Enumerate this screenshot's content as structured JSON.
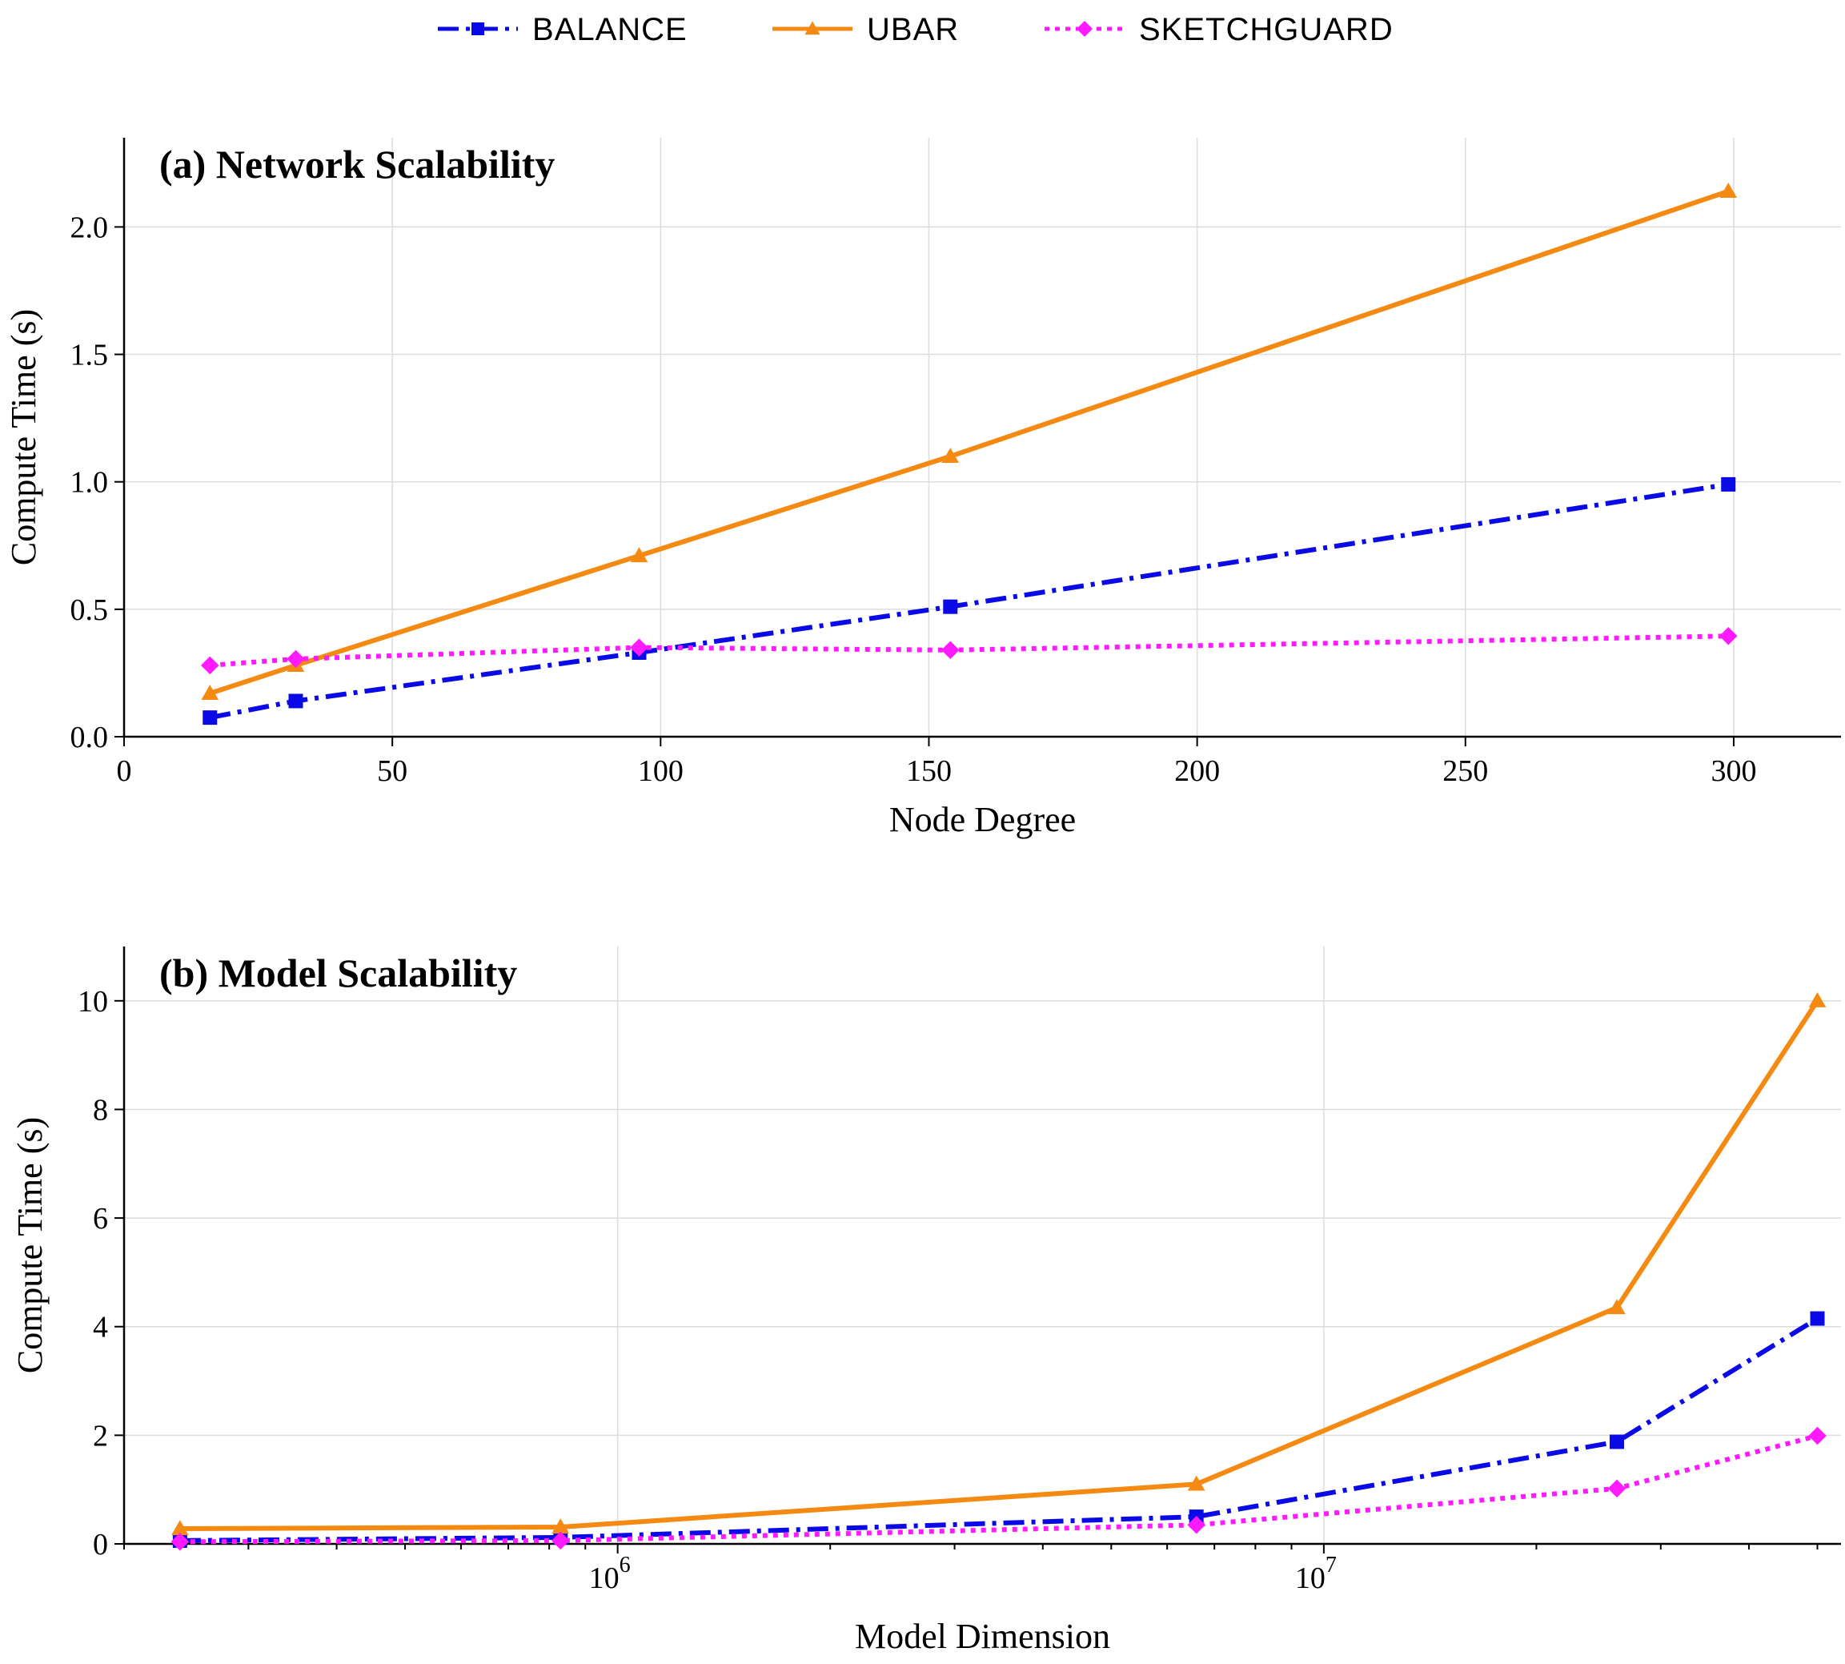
{
  "legend": {
    "placement": "top-center",
    "entries": [
      {
        "name": "BALANCE",
        "color": "#0a0ae6",
        "marker": "square",
        "dash": "dashdot"
      },
      {
        "name": "UBAR",
        "color": "#f58a12",
        "marker": "triangle",
        "dash": "solid"
      },
      {
        "name": "SKETCHGUARD",
        "color": "#ff1aff",
        "marker": "diamond",
        "dash": "dotted"
      }
    ]
  },
  "chart_data": [
    {
      "type": "line",
      "title": "(a) Network Scalability",
      "xlabel": "Node Degree",
      "ylabel": "Compute Time (s)",
      "xscale": "linear",
      "xlim": [
        0,
        320
      ],
      "ylim": [
        0,
        2.35
      ],
      "xticks": [
        0,
        50,
        100,
        150,
        200,
        250,
        300
      ],
      "xtick_labels": [
        "0",
        "50",
        "100",
        "150",
        "200",
        "250",
        "300"
      ],
      "yticks": [
        0,
        0.5,
        1.0,
        1.5,
        2.0
      ],
      "ytick_labels": [
        "0.0",
        "0.5",
        "1.0",
        "1.5",
        "2.0"
      ],
      "grid": true,
      "series": [
        {
          "name": "BALANCE",
          "x": [
            16,
            32,
            96,
            154,
            299
          ],
          "y": [
            0.075,
            0.14,
            0.33,
            0.51,
            0.99
          ]
        },
        {
          "name": "UBAR",
          "x": [
            16,
            32,
            96,
            154,
            299
          ],
          "y": [
            0.17,
            0.28,
            0.71,
            1.1,
            2.14
          ]
        },
        {
          "name": "SKETCHGUARD",
          "x": [
            16,
            32,
            96,
            154,
            299
          ],
          "y": [
            0.28,
            0.305,
            0.35,
            0.34,
            0.395
          ]
        }
      ]
    },
    {
      "type": "line",
      "title": "(b) Model Scalability",
      "xlabel": "Model Dimension",
      "ylabel": "Compute Time (s)",
      "xscale": "log",
      "xlim": [
        200000,
        54000000
      ],
      "ylim": [
        0,
        11
      ],
      "xticks": [
        1000000,
        10000000
      ],
      "xtick_labels": [
        "10^6",
        "10^7"
      ],
      "yticks": [
        0,
        2,
        4,
        6,
        8,
        10
      ],
      "ytick_labels": [
        "0",
        "2",
        "4",
        "6",
        "8",
        "10"
      ],
      "grid": true,
      "series": [
        {
          "name": "BALANCE",
          "x": [
            240000,
            830000,
            6600000,
            26000000,
            50000000
          ],
          "y": [
            0.06,
            0.12,
            0.5,
            1.88,
            4.15
          ]
        },
        {
          "name": "UBAR",
          "x": [
            240000,
            830000,
            6600000,
            26000000,
            50000000
          ],
          "y": [
            0.28,
            0.31,
            1.1,
            4.35,
            10.0
          ]
        },
        {
          "name": "SKETCHGUARD",
          "x": [
            240000,
            830000,
            6600000,
            26000000,
            50000000
          ],
          "y": [
            0.04,
            0.06,
            0.35,
            1.02,
            1.99
          ]
        }
      ]
    }
  ]
}
